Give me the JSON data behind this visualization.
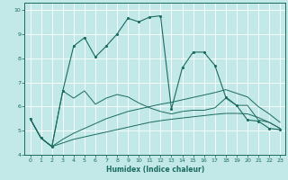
{
  "xlabel": "Humidex (Indice chaleur)",
  "bg_color": "#c2e8e8",
  "grid_color": "#ffffff",
  "line_color": "#1a6b60",
  "xlim": [
    -0.5,
    23.5
  ],
  "ylim": [
    4,
    10.3
  ],
  "xticks": [
    0,
    1,
    2,
    3,
    4,
    5,
    6,
    7,
    8,
    9,
    10,
    11,
    12,
    13,
    14,
    15,
    16,
    17,
    18,
    19,
    20,
    21,
    22,
    23
  ],
  "yticks": [
    4,
    5,
    6,
    7,
    8,
    9,
    10
  ],
  "line1_x": [
    0,
    1,
    2,
    3,
    4,
    5,
    6,
    7,
    8,
    9,
    10,
    11,
    12,
    13,
    14,
    15,
    16,
    17,
    18,
    19,
    20,
    21,
    22,
    23
  ],
  "line1_y": [
    5.5,
    4.7,
    4.35,
    6.65,
    8.5,
    8.85,
    8.05,
    8.5,
    9.0,
    9.65,
    9.5,
    9.7,
    9.75,
    5.9,
    7.6,
    8.25,
    8.25,
    7.7,
    6.4,
    6.05,
    5.45,
    5.4,
    5.1,
    5.05
  ],
  "line2_x": [
    0,
    1,
    2,
    3,
    4,
    5,
    6,
    7,
    8,
    9,
    10,
    11,
    12,
    13,
    14,
    15,
    16,
    17,
    18,
    19,
    20,
    21,
    22,
    23
  ],
  "line2_y": [
    5.5,
    4.7,
    4.35,
    6.65,
    6.35,
    6.65,
    6.1,
    6.35,
    6.5,
    6.4,
    6.15,
    5.95,
    5.8,
    5.7,
    5.8,
    5.85,
    5.85,
    5.95,
    6.35,
    6.05,
    6.05,
    5.45,
    5.35,
    5.1
  ],
  "diag1_x": [
    0,
    1,
    2,
    3,
    4,
    5,
    6,
    7,
    8,
    9,
    10,
    11,
    12,
    13,
    14,
    15,
    16,
    17,
    18,
    19,
    20,
    21,
    22,
    23
  ],
  "diag1_y": [
    5.5,
    4.7,
    4.35,
    4.5,
    4.65,
    4.75,
    4.85,
    4.95,
    5.05,
    5.15,
    5.25,
    5.35,
    5.42,
    5.48,
    5.53,
    5.58,
    5.63,
    5.68,
    5.72,
    5.72,
    5.7,
    5.55,
    5.35,
    5.1
  ],
  "diag2_x": [
    0,
    1,
    2,
    3,
    4,
    5,
    6,
    7,
    8,
    9,
    10,
    11,
    12,
    13,
    14,
    15,
    16,
    17,
    18,
    19,
    20,
    21,
    22,
    23
  ],
  "diag2_y": [
    5.5,
    4.7,
    4.35,
    4.65,
    4.9,
    5.1,
    5.3,
    5.5,
    5.65,
    5.8,
    5.9,
    6.0,
    6.1,
    6.18,
    6.28,
    6.38,
    6.48,
    6.58,
    6.7,
    6.55,
    6.4,
    6.0,
    5.7,
    5.35
  ]
}
